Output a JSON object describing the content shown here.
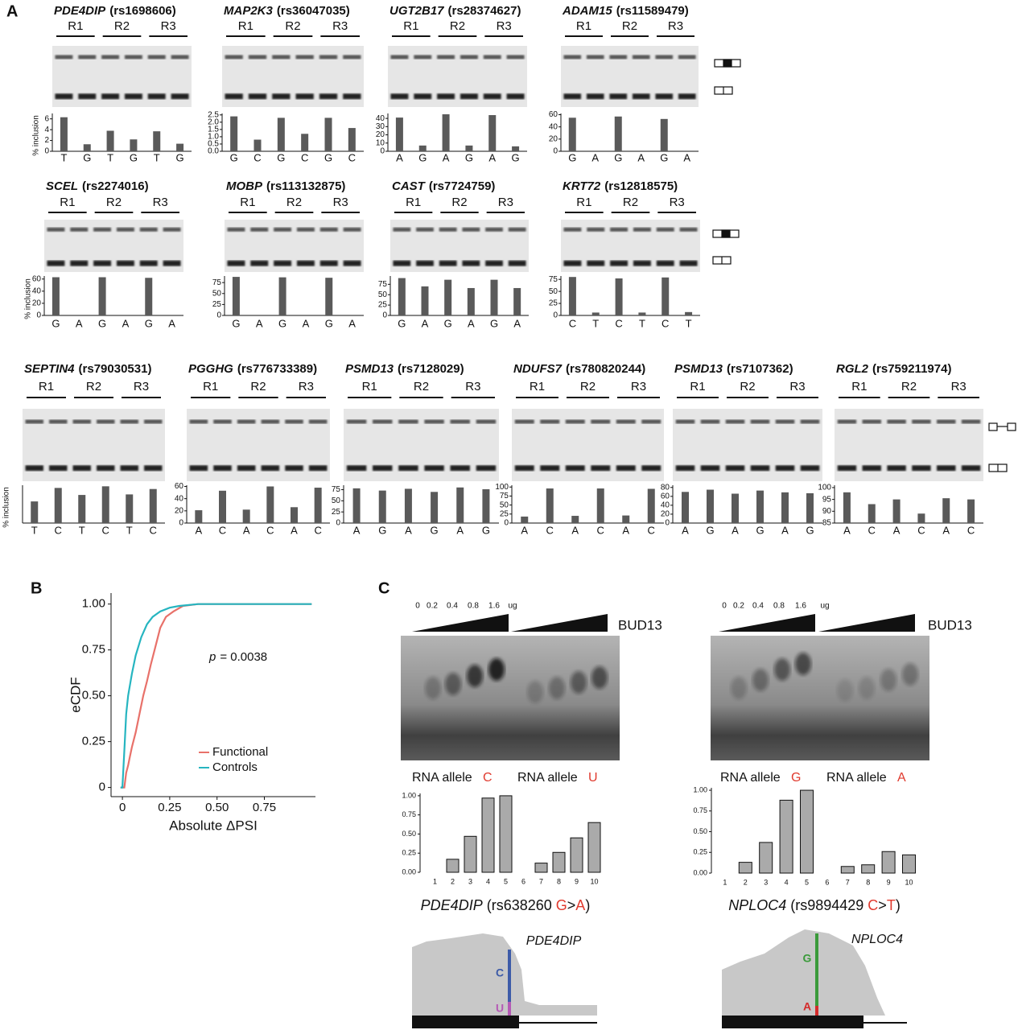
{
  "panels": [
    "A",
    "B",
    "C"
  ],
  "chart_data": [
    {
      "type": "bar",
      "gene": "PDE4DIP",
      "snp": "(rs1698606)",
      "replicates": [
        "R1",
        "R2",
        "R3"
      ],
      "ylabel": "% inclusion",
      "categories": [
        "T",
        "G",
        "T",
        "G",
        "T",
        "G"
      ],
      "values": [
        6.3,
        1.3,
        3.8,
        2.2,
        3.7,
        1.4
      ],
      "ylim": [
        0,
        7
      ],
      "yticks": [
        0,
        2,
        4,
        6
      ],
      "color": "#5a5a5a"
    },
    {
      "type": "bar",
      "gene": "MAP2K3",
      "snp": "(rs36047035)",
      "replicates": [
        "R1",
        "R2",
        "R3"
      ],
      "categories": [
        "G",
        "C",
        "G",
        "C",
        "G",
        "C"
      ],
      "values": [
        2.4,
        0.8,
        2.3,
        1.2,
        2.3,
        1.6
      ],
      "ylim": [
        0,
        2.6
      ],
      "yticks": [
        {
          "value": 0,
          "label": "0.0"
        },
        0.5,
        {
          "value": 1,
          "label": "1.0"
        },
        1.5,
        {
          "value": 2,
          "label": "2.0"
        },
        2.5
      ],
      "color": "#5a5a5a"
    },
    {
      "type": "bar",
      "gene": "UGT2B17",
      "snp": "(rs28374627)",
      "replicates": [
        "R1",
        "R2",
        "R3"
      ],
      "categories": [
        "A",
        "G",
        "A",
        "G",
        "A",
        "G"
      ],
      "values": [
        41,
        7,
        45,
        7,
        44,
        6
      ],
      "ylim": [
        0,
        46
      ],
      "yticks": [
        0,
        10,
        20,
        30,
        40
      ],
      "color": "#5a5a5a"
    },
    {
      "type": "bar",
      "gene": "ADAM15",
      "snp": "(rs11589479)",
      "replicates": [
        "R1",
        "R2",
        "R3"
      ],
      "categories": [
        "G",
        "A",
        "G",
        "A",
        "G",
        "A"
      ],
      "values": [
        55,
        0,
        57,
        0,
        53,
        0
      ],
      "ylim": [
        0,
        62
      ],
      "yticks": [
        0,
        20,
        40,
        60
      ],
      "color": "#5a5a5a"
    },
    {
      "type": "bar",
      "gene": "SCEL",
      "snp": "(rs2274016)",
      "replicates": [
        "R1",
        "R2",
        "R3"
      ],
      "ylabel": "% inclusion",
      "categories": [
        "G",
        "A",
        "G",
        "A",
        "G",
        "A"
      ],
      "values": [
        63,
        0,
        63,
        0,
        62,
        0
      ],
      "ylim": [
        0,
        65
      ],
      "yticks": [
        0,
        20,
        40,
        60
      ],
      "color": "#5a5a5a"
    },
    {
      "type": "bar",
      "gene": "MOBP",
      "snp": "(rs113132875)",
      "replicates": [
        "R1",
        "R2",
        "R3"
      ],
      "categories": [
        "G",
        "A",
        "G",
        "A",
        "G",
        "A"
      ],
      "values": [
        88,
        0,
        87,
        0,
        86,
        0
      ],
      "ylim": [
        0,
        90
      ],
      "yticks": [
        0,
        25,
        50,
        75
      ],
      "color": "#5a5a5a"
    },
    {
      "type": "bar",
      "gene": "CAST",
      "snp": "(rs7724759)",
      "replicates": [
        "R1",
        "R2",
        "R3"
      ],
      "categories": [
        "G",
        "A",
        "G",
        "A",
        "G",
        "A"
      ],
      "values": [
        90,
        70,
        86,
        66,
        86,
        66
      ],
      "ylim": [
        0,
        95
      ],
      "yticks": [
        0,
        25,
        50,
        75
      ],
      "color": "#5a5a5a"
    },
    {
      "type": "bar",
      "gene": "KRT72",
      "snp": "(rs12818575)",
      "replicates": [
        "R1",
        "R2",
        "R3"
      ],
      "categories": [
        "C",
        "T",
        "C",
        "T",
        "C",
        "T"
      ],
      "values": [
        80,
        6,
        77,
        6,
        79,
        7
      ],
      "ylim": [
        0,
        82
      ],
      "yticks": [
        0,
        25,
        50,
        75
      ],
      "color": "#5a5a5a"
    },
    {
      "type": "bar",
      "gene": "SEPTIN4",
      "snp": "(rs79030531)",
      "replicates": [
        "R1",
        "R2",
        "R3"
      ],
      "ylabel": "% inclusion",
      "categories": [
        "T",
        "C",
        "T",
        "C",
        "T",
        "C"
      ],
      "values": [
        40,
        65,
        52,
        68,
        53,
        63
      ],
      "ylim": [
        0,
        70
      ],
      "color": "#5a5a5a"
    },
    {
      "type": "bar",
      "gene": "PGGHG",
      "snp": "(rs776733389)",
      "replicates": [
        "R1",
        "R2",
        "R3"
      ],
      "categories": [
        "A",
        "C",
        "A",
        "C",
        "A",
        "C"
      ],
      "values": [
        21,
        53,
        22,
        60,
        26,
        58
      ],
      "ylim": [
        0,
        62
      ],
      "yticks": [
        0,
        20,
        40,
        60
      ],
      "color": "#5a5a5a"
    },
    {
      "type": "bar",
      "gene": "PSMD13",
      "snp": "(rs7128029)",
      "replicates": [
        "R1",
        "R2",
        "R3"
      ],
      "categories": [
        "A",
        "G",
        "A",
        "G",
        "A",
        "G"
      ],
      "values": [
        78,
        73,
        77,
        70,
        80,
        76
      ],
      "ylim": [
        0,
        85
      ],
      "yticks": [
        0,
        25,
        50,
        75
      ],
      "color": "#5a5a5a"
    },
    {
      "type": "bar",
      "gene": "NDUFS7",
      "snp": "(rs780820244)",
      "replicates": [
        "R1",
        "R2",
        "R3"
      ],
      "categories": [
        "A",
        "C",
        "A",
        "C",
        "A",
        "C"
      ],
      "values": [
        18,
        96,
        20,
        96,
        21,
        95
      ],
      "ylim": [
        0,
        105
      ],
      "yticks": [
        0,
        25,
        50,
        75,
        100
      ],
      "color": "#5a5a5a"
    },
    {
      "type": "bar",
      "gene": "PSMD13",
      "snp": "(rs7107362)",
      "replicates": [
        "R1",
        "R2",
        "R3"
      ],
      "categories": [
        "A",
        "G",
        "A",
        "G",
        "A",
        "G"
      ],
      "values": [
        70,
        75,
        66,
        73,
        69,
        67
      ],
      "ylim": [
        0,
        85
      ],
      "yticks": [
        0,
        20,
        40,
        60,
        80
      ],
      "color": "#5a5a5a"
    },
    {
      "type": "bar",
      "gene": "RGL2",
      "snp": "(rs759211974)",
      "replicates": [
        "R1",
        "R2",
        "R3"
      ],
      "categories": [
        "A",
        "C",
        "A",
        "C",
        "A",
        "C"
      ],
      "values": [
        98,
        93,
        95,
        89,
        95.5,
        95
      ],
      "ylim": [
        85,
        101
      ],
      "yticks": [
        85,
        90,
        95,
        100
      ],
      "color": "#5a5a5a"
    },
    {
      "type": "line",
      "xlabel": "Absolute ΔPSI",
      "ylabel": "eCDF",
      "annotation": {
        "italic": "p",
        "text": "= 0.0038"
      },
      "legend": "bottom-right",
      "xlim": [
        -0.06,
        1.02
      ],
      "ylim": [
        -0.05,
        1.06
      ],
      "xticks": [
        0,
        0.25,
        {
          "value": 0.5,
          "label": "0.50"
        },
        0.75
      ],
      "yticks": [
        0,
        0.25,
        {
          "value": 0.5,
          "label": "0.50"
        },
        0.75,
        {
          "value": 1,
          "label": "1.00"
        }
      ],
      "series": [
        {
          "name": "Functional",
          "color": "#e8716a",
          "x": [
            -0.01,
            0.01,
            0.02,
            0.03,
            0.04,
            0.05,
            0.07,
            0.09,
            0.11,
            0.13,
            0.15,
            0.17,
            0.2,
            0.23,
            0.27,
            0.32,
            0.4,
            0.5,
            1.0
          ],
          "values": [
            0,
            0,
            0.08,
            0.12,
            0.17,
            0.22,
            0.3,
            0.4,
            0.5,
            0.58,
            0.67,
            0.75,
            0.87,
            0.93,
            0.96,
            0.99,
            1,
            1,
            1
          ]
        },
        {
          "name": "Controls",
          "color": "#26b5c0",
          "x": [
            -0.01,
            0,
            0.01,
            0.02,
            0.03,
            0.05,
            0.07,
            0.1,
            0.13,
            0.16,
            0.2,
            0.25,
            0.3,
            0.4,
            0.5,
            1.0
          ],
          "values": [
            0,
            0,
            0.2,
            0.4,
            0.5,
            0.62,
            0.72,
            0.82,
            0.89,
            0.93,
            0.96,
            0.98,
            0.99,
            1,
            1,
            1
          ]
        }
      ]
    },
    {
      "type": "bar",
      "doses": [
        "0",
        "0.2",
        "0.4",
        "0.8",
        "1.6"
      ],
      "dose_unit": "ug",
      "protein": "BUD13",
      "allele_label": "RNA allele",
      "alleles": [
        "C",
        "U"
      ],
      "categories": [
        "1",
        "2",
        "3",
        "4",
        "5",
        "6",
        "7",
        "8",
        "9",
        "10"
      ],
      "values": [
        0,
        0.17,
        0.47,
        0.97,
        1.0,
        0,
        0.12,
        0.26,
        0.45,
        0.65
      ],
      "ylim": [
        0,
        1.02
      ],
      "yticks": [
        {
          "value": 0,
          "label": "0.00"
        },
        0.25,
        {
          "value": 0.5,
          "label": "0.50"
        },
        0.75,
        {
          "value": 1,
          "label": "1.00"
        }
      ],
      "color": "#aaaaaa",
      "gene": "PDE4DIP",
      "snp": "(rs638260",
      "ref": "G",
      "sep": ">",
      "alt": "A",
      "close": ")",
      "coverage": {
        "gene": "PDE4DIP",
        "ref": "C",
        "alt": "U"
      }
    },
    {
      "type": "bar",
      "doses": [
        "0",
        "0.2",
        "0.4",
        "0.8",
        "1.6"
      ],
      "dose_unit": "ug",
      "protein": "BUD13",
      "allele_label": "RNA allele",
      "alleles": [
        "G",
        "A"
      ],
      "categories": [
        "1",
        "2",
        "3",
        "4",
        "5",
        "6",
        "7",
        "8",
        "9",
        "10"
      ],
      "values": [
        0,
        0.13,
        0.37,
        0.88,
        1.0,
        0,
        0.08,
        0.1,
        0.26,
        0.22
      ],
      "ylim": [
        0,
        1.02
      ],
      "yticks": [
        {
          "value": 0,
          "label": "0.00"
        },
        0.25,
        {
          "value": 0.5,
          "label": "0.50"
        },
        0.75,
        {
          "value": 1,
          "label": "1.00"
        }
      ],
      "color": "#aaaaaa",
      "gene": "NPLOC4",
      "snp": "(rs9894429",
      "ref": "C",
      "sep": ">",
      "alt": "T",
      "close": ")",
      "coverage": {
        "gene": "NPLOC4",
        "ref": "G",
        "alt": "A"
      }
    }
  ]
}
